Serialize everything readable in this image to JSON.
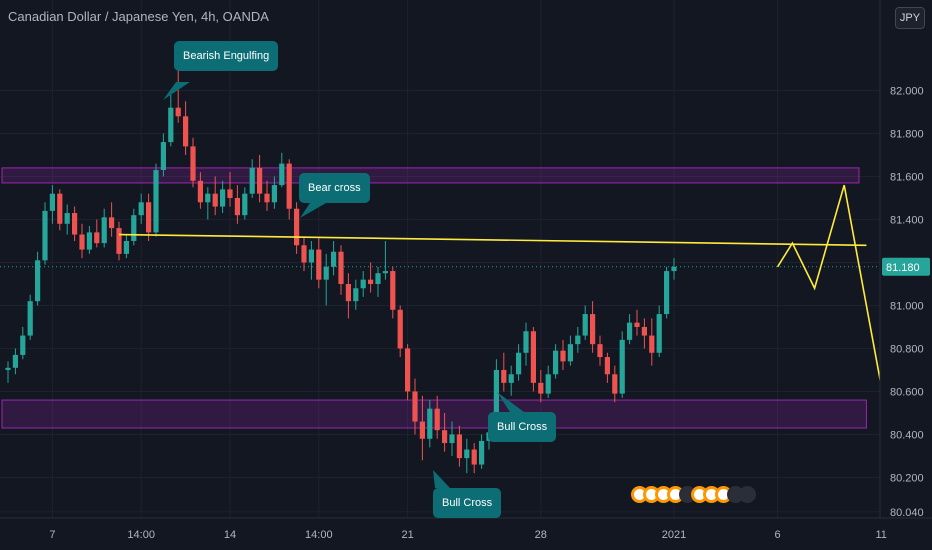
{
  "header": {
    "title": "Canadian Dollar / Japanese Yen, 4h, OANDA",
    "currency_button": "JPY"
  },
  "colors": {
    "background": "#131722",
    "bull": "#26a69a",
    "bear": "#ef5350",
    "zone": "#9c27b0",
    "trendline": "#ffeb3b",
    "callout": "#0c6d75",
    "price_badge": "#26a69a"
  },
  "chart_data": {
    "type": "candlestick",
    "title": "Canadian Dollar / Japanese Yen, 4h, OANDA",
    "ylim": [
      80.03,
      82.3
    ],
    "y_ticks": [
      82.0,
      81.8,
      81.6,
      81.4,
      81.2,
      81.0,
      80.8,
      80.6,
      80.4,
      80.2,
      80.04
    ],
    "y_tick_labels": [
      "82.000",
      "81.800",
      "81.600",
      "81.400",
      "81.200",
      "81.000",
      "80.800",
      "80.600",
      "80.400",
      "80.200",
      "80.040"
    ],
    "x_ticks": [
      "7",
      "14:00",
      "14",
      "14:00",
      "21",
      "28",
      "2021",
      "6",
      "11"
    ],
    "x_tick_bar_index": [
      6,
      18,
      30,
      42,
      54,
      72,
      90,
      104,
      118
    ],
    "last_price": 81.18,
    "last_price_label": "81.180",
    "zones": [
      {
        "low": 81.57,
        "high": 81.64,
        "from_bar": 0,
        "to_bar": 115
      },
      {
        "low": 80.43,
        "high": 80.56,
        "from_bar": 0,
        "to_bar": 116
      }
    ],
    "candles": [
      [
        80.7,
        80.74,
        80.64,
        80.71
      ],
      [
        80.71,
        80.8,
        80.68,
        80.77
      ],
      [
        80.77,
        80.9,
        80.75,
        80.86
      ],
      [
        80.86,
        81.05,
        80.84,
        81.02
      ],
      [
        81.02,
        81.25,
        81.0,
        81.21
      ],
      [
        81.21,
        81.48,
        81.19,
        81.44
      ],
      [
        81.44,
        81.56,
        81.38,
        81.52
      ],
      [
        81.52,
        81.54,
        81.35,
        81.38
      ],
      [
        81.38,
        81.47,
        81.33,
        81.43
      ],
      [
        81.43,
        81.46,
        81.3,
        81.33
      ],
      [
        81.33,
        81.38,
        81.22,
        81.26
      ],
      [
        81.26,
        81.37,
        81.24,
        81.34
      ],
      [
        81.34,
        81.4,
        81.27,
        81.29
      ],
      [
        81.29,
        81.45,
        81.27,
        81.41
      ],
      [
        81.41,
        81.48,
        81.32,
        81.36
      ],
      [
        81.36,
        81.39,
        81.21,
        81.24
      ],
      [
        81.24,
        81.33,
        81.22,
        81.3
      ],
      [
        81.3,
        81.45,
        81.28,
        81.42
      ],
      [
        81.42,
        81.52,
        81.38,
        81.48
      ],
      [
        81.48,
        81.52,
        81.3,
        81.34
      ],
      [
        81.34,
        81.66,
        81.32,
        81.63
      ],
      [
        81.63,
        81.8,
        81.6,
        81.76
      ],
      [
        81.76,
        81.98,
        81.74,
        81.92
      ],
      [
        81.92,
        82.1,
        81.85,
        81.88
      ],
      [
        81.88,
        81.95,
        81.7,
        81.74
      ],
      [
        81.74,
        81.78,
        81.55,
        81.58
      ],
      [
        81.58,
        81.62,
        81.45,
        81.48
      ],
      [
        81.48,
        81.55,
        81.4,
        81.52
      ],
      [
        81.52,
        81.6,
        81.42,
        81.46
      ],
      [
        81.46,
        81.58,
        81.43,
        81.54
      ],
      [
        81.54,
        81.62,
        81.46,
        81.5
      ],
      [
        81.5,
        81.56,
        81.38,
        81.42
      ],
      [
        81.42,
        81.55,
        81.4,
        81.52
      ],
      [
        81.52,
        81.68,
        81.5,
        81.64
      ],
      [
        81.64,
        81.7,
        81.48,
        81.52
      ],
      [
        81.52,
        81.58,
        81.44,
        81.48
      ],
      [
        81.48,
        81.6,
        81.45,
        81.56
      ],
      [
        81.56,
        81.71,
        81.55,
        81.66
      ],
      [
        81.66,
        81.68,
        81.4,
        81.45
      ],
      [
        81.45,
        81.48,
        81.24,
        81.28
      ],
      [
        81.28,
        81.32,
        81.16,
        81.2
      ],
      [
        81.2,
        81.3,
        81.12,
        81.26
      ],
      [
        81.26,
        81.32,
        81.08,
        81.12
      ],
      [
        81.12,
        81.24,
        81.0,
        81.18
      ],
      [
        81.18,
        81.3,
        81.14,
        81.25
      ],
      [
        81.25,
        81.28,
        81.05,
        81.1
      ],
      [
        81.1,
        81.15,
        80.94,
        81.02
      ],
      [
        81.02,
        81.12,
        80.98,
        81.08
      ],
      [
        81.08,
        81.16,
        81.04,
        81.12
      ],
      [
        81.12,
        81.2,
        81.06,
        81.1
      ],
      [
        81.1,
        81.18,
        81.04,
        81.15
      ],
      [
        81.15,
        81.3,
        81.12,
        81.16
      ],
      [
        81.16,
        81.18,
        80.94,
        80.98
      ],
      [
        80.98,
        81.0,
        80.76,
        80.8
      ],
      [
        80.8,
        80.82,
        80.56,
        80.6
      ],
      [
        80.6,
        80.66,
        80.4,
        80.46
      ],
      [
        80.46,
        80.58,
        80.28,
        80.38
      ],
      [
        80.38,
        80.56,
        80.34,
        80.52
      ],
      [
        80.52,
        80.58,
        80.38,
        80.42
      ],
      [
        80.42,
        80.5,
        80.32,
        80.36
      ],
      [
        80.36,
        80.46,
        80.3,
        80.4
      ],
      [
        80.4,
        80.44,
        80.25,
        80.29
      ],
      [
        80.29,
        80.38,
        80.22,
        80.33
      ],
      [
        80.33,
        80.36,
        80.22,
        80.26
      ],
      [
        80.26,
        80.4,
        80.24,
        80.37
      ],
      [
        80.37,
        80.46,
        80.33,
        80.41
      ],
      [
        80.41,
        80.75,
        80.39,
        80.7
      ],
      [
        80.7,
        80.78,
        80.6,
        80.64
      ],
      [
        80.64,
        80.72,
        80.58,
        80.68
      ],
      [
        80.68,
        80.82,
        80.65,
        80.78
      ],
      [
        80.78,
        80.92,
        80.72,
        80.88
      ],
      [
        80.88,
        80.9,
        80.6,
        80.64
      ],
      [
        80.64,
        80.7,
        80.55,
        80.59
      ],
      [
        80.59,
        80.72,
        80.57,
        80.68
      ],
      [
        80.68,
        80.82,
        80.66,
        80.79
      ],
      [
        80.79,
        80.84,
        80.7,
        80.74
      ],
      [
        80.74,
        80.86,
        80.72,
        80.82
      ],
      [
        80.82,
        80.9,
        80.78,
        80.86
      ],
      [
        80.86,
        81.0,
        80.84,
        80.96
      ],
      [
        80.96,
        81.02,
        80.78,
        80.82
      ],
      [
        80.82,
        80.86,
        80.72,
        80.76
      ],
      [
        80.76,
        80.78,
        80.64,
        80.68
      ],
      [
        80.68,
        80.72,
        80.55,
        80.59
      ],
      [
        80.59,
        80.88,
        80.57,
        80.84
      ],
      [
        80.84,
        80.96,
        80.82,
        80.92
      ],
      [
        80.92,
        80.98,
        80.86,
        80.9
      ],
      [
        80.9,
        80.94,
        80.8,
        80.86
      ],
      [
        80.86,
        80.94,
        80.72,
        80.78
      ],
      [
        80.78,
        81.0,
        80.76,
        80.96
      ],
      [
        80.96,
        81.18,
        80.94,
        81.16
      ],
      [
        81.16,
        81.22,
        81.12,
        81.18
      ]
    ],
    "trendline": [
      [
        15,
        81.33
      ],
      [
        116,
        81.28
      ]
    ],
    "projection": [
      [
        104,
        81.18
      ],
      [
        106,
        81.29
      ],
      [
        109,
        81.08
      ],
      [
        113,
        81.56
      ],
      [
        119,
        80.44
      ]
    ],
    "annotations": [
      {
        "label": "Bearish Engulfing",
        "bar": 23,
        "price": 82.05
      },
      {
        "label": "Bear cross",
        "bar": 44,
        "price": 81.32
      },
      {
        "label": "Bull Cross",
        "bar": 73,
        "price": 80.58
      },
      {
        "label": "Bull Cross",
        "bar": 65,
        "price": 80.35
      }
    ]
  }
}
